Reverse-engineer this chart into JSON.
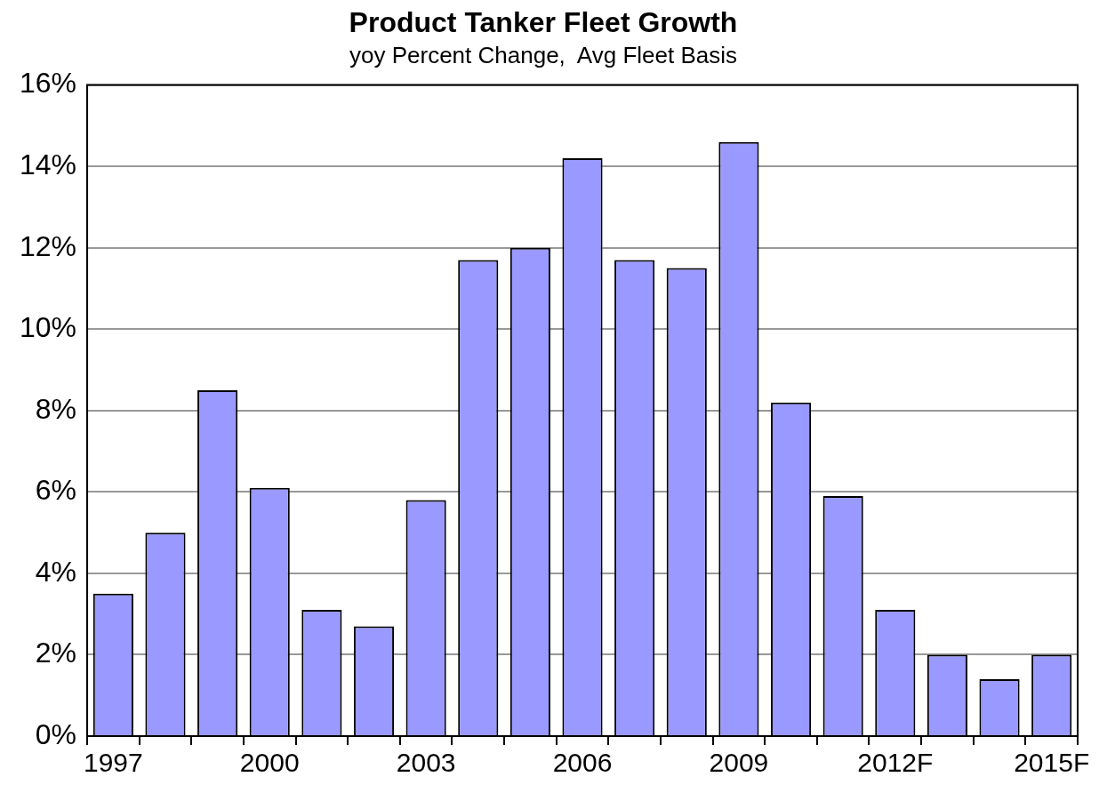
{
  "chart_data": {
    "type": "bar",
    "title": "Product Tanker Fleet Growth",
    "subtitle": "yoy Percent Change,  Avg Fleet Basis",
    "categories": [
      "1997",
      null,
      null,
      "2000",
      null,
      null,
      "2003",
      null,
      null,
      "2006",
      null,
      null,
      "2009",
      null,
      null,
      "2012F",
      null,
      null,
      "2015F"
    ],
    "values": [
      3.5,
      5.0,
      8.5,
      6.1,
      3.1,
      2.7,
      5.8,
      11.7,
      12.0,
      14.2,
      11.7,
      11.5,
      14.6,
      8.2,
      5.9,
      3.1,
      2.0,
      1.4,
      2.0
    ],
    "color": "#9999ff",
    "ylim": [
      0,
      16
    ],
    "yticks": [
      {
        "value": 0,
        "label": "0%"
      },
      {
        "value": 2,
        "label": "2%"
      },
      {
        "value": 4,
        "label": "4%"
      },
      {
        "value": 6,
        "label": "6%"
      },
      {
        "value": 8,
        "label": "8%"
      },
      {
        "value": 10,
        "label": "10%"
      },
      {
        "value": 12,
        "label": "12%"
      },
      {
        "value": 14,
        "label": "14%"
      },
      {
        "value": 16,
        "label": "16%"
      }
    ],
    "grid": "y"
  }
}
